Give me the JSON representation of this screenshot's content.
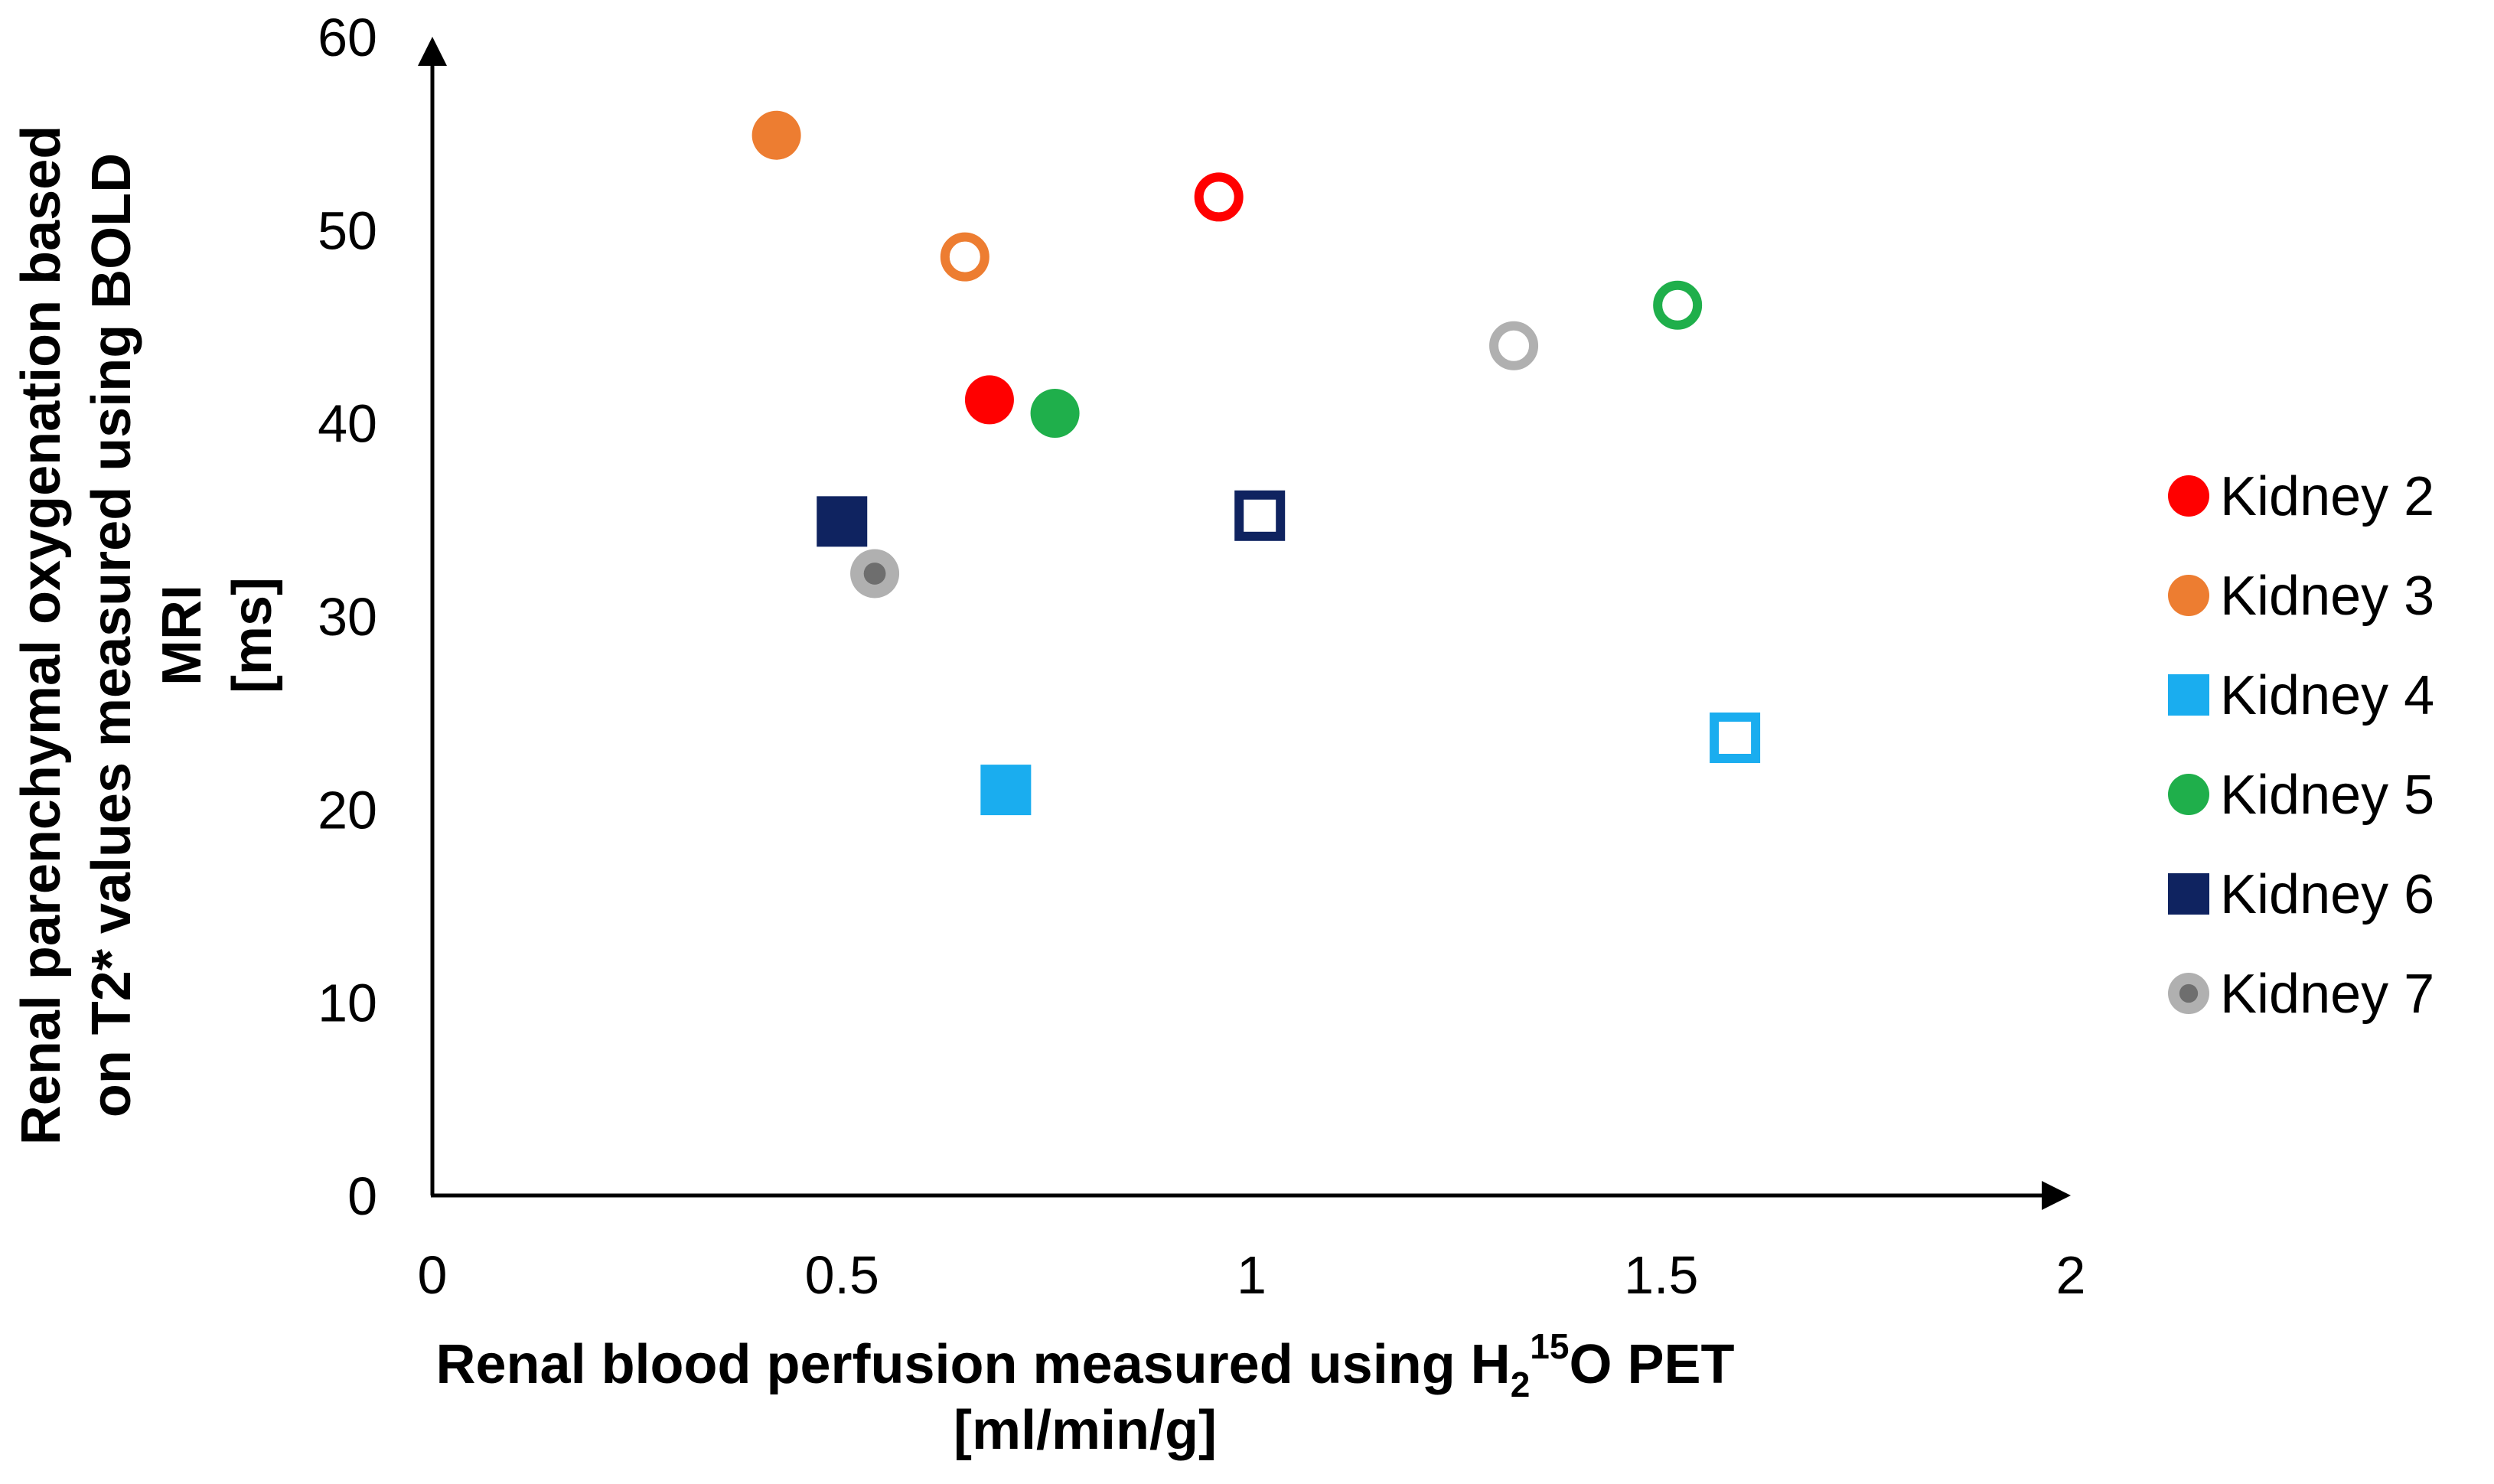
{
  "chart_data": {
    "type": "scatter",
    "title": "",
    "xlabel_line1_prefix": "Renal blood perfusion measured using H",
    "xlabel_sub": "2",
    "xlabel_sup": "15",
    "xlabel_line1_suffix": "O PET",
    "xlabel_line2": "[ml/min/g]",
    "ylabel_lines": [
      "Renal parenchymal oxygenation based",
      "on T2* values measured using BOLD",
      "MRI",
      "[ms]"
    ],
    "xlim": [
      0,
      2
    ],
    "ylim": [
      0,
      60
    ],
    "x_ticks": [
      0,
      0.5,
      1,
      1.5,
      2
    ],
    "x_tick_labels": [
      "0",
      "0.5",
      "1",
      "1.5",
      "2"
    ],
    "y_ticks": [
      0,
      10,
      20,
      30,
      40,
      50,
      60
    ],
    "y_tick_labels": [
      "0",
      "10",
      "20",
      "30",
      "40",
      "50",
      "60"
    ],
    "legend_position": "right",
    "series": [
      {
        "name": "Kidney 2",
        "color": "#ff0000",
        "marker": "circle",
        "points": [
          {
            "x": 0.68,
            "y": 41.2,
            "filled": true
          },
          {
            "x": 0.96,
            "y": 51.7,
            "filled": false
          }
        ]
      },
      {
        "name": "Kidney 3",
        "color": "#ed7d31",
        "marker": "circle",
        "points": [
          {
            "x": 0.42,
            "y": 54.9,
            "filled": true
          },
          {
            "x": 0.65,
            "y": 48.6,
            "filled": false
          }
        ]
      },
      {
        "name": "Kidney 4",
        "color": "#1aadef",
        "marker": "square",
        "points": [
          {
            "x": 0.7,
            "y": 21.0,
            "filled": true
          },
          {
            "x": 1.59,
            "y": 23.7,
            "filled": false
          }
        ]
      },
      {
        "name": "Kidney 5",
        "color": "#1faf4b",
        "marker": "circle",
        "points": [
          {
            "x": 0.76,
            "y": 40.5,
            "filled": true
          },
          {
            "x": 1.52,
            "y": 46.1,
            "filled": false
          }
        ]
      },
      {
        "name": "Kidney 6",
        "color": "#0f2360",
        "marker": "square",
        "points": [
          {
            "x": 0.5,
            "y": 34.9,
            "filled": true
          },
          {
            "x": 1.01,
            "y": 35.2,
            "filled": false
          }
        ]
      },
      {
        "name": "Kidney 7",
        "color": "#b0b0b0",
        "inner_color": "#6e6e6e",
        "marker": "circle-dot",
        "points": [
          {
            "x": 0.54,
            "y": 32.2,
            "filled": true
          },
          {
            "x": 1.32,
            "y": 44.0,
            "filled": false
          }
        ]
      }
    ]
  }
}
